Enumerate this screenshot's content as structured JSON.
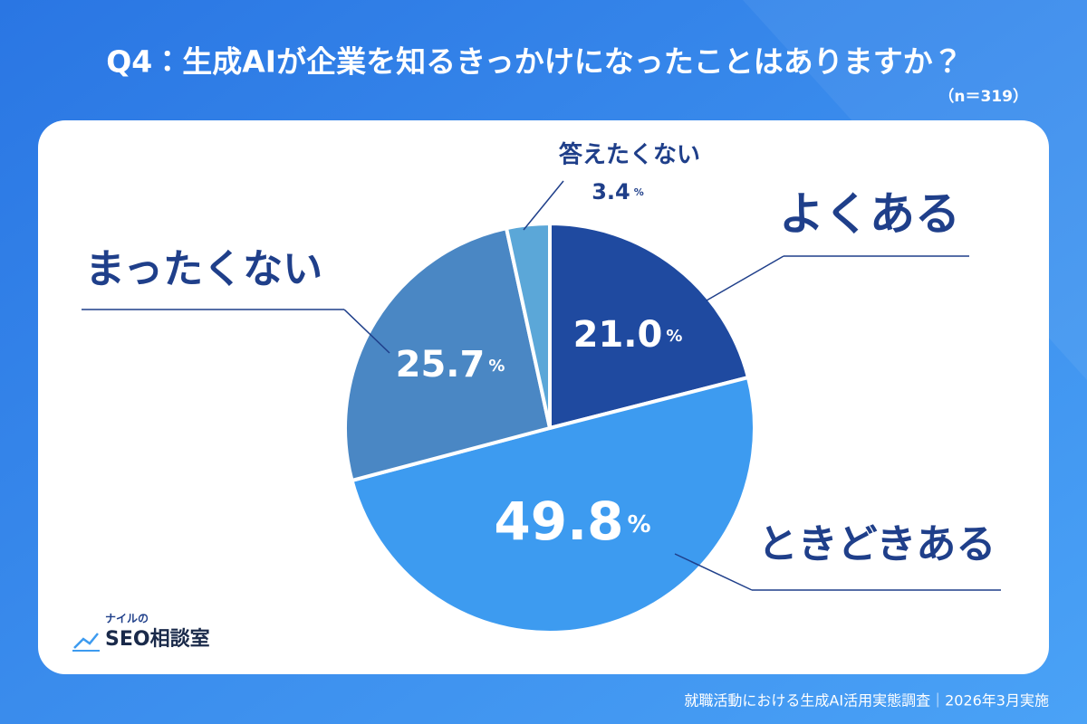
{
  "chart_data": {
    "type": "pie",
    "title": "Q4：生成AIが企業を知るきっかけになったことはありますか？",
    "subtitle": "（n＝319）",
    "categories": [
      "よくある",
      "ときどきある",
      "まったくない",
      "答えたくない"
    ],
    "values": [
      21.0,
      49.8,
      25.7,
      3.4
    ],
    "value_labels": [
      "21.0%",
      "49.8%",
      "25.7%",
      "3.4%"
    ],
    "colors": [
      "#1f4aa0",
      "#3d9bf0",
      "#4a87c4",
      "#5ba7d8"
    ]
  },
  "logo": {
    "subtitle": "ナイルの",
    "name": "SEO相談室"
  },
  "footer": "就職活動における生成AI活用実態調査｜2026年3月実施"
}
